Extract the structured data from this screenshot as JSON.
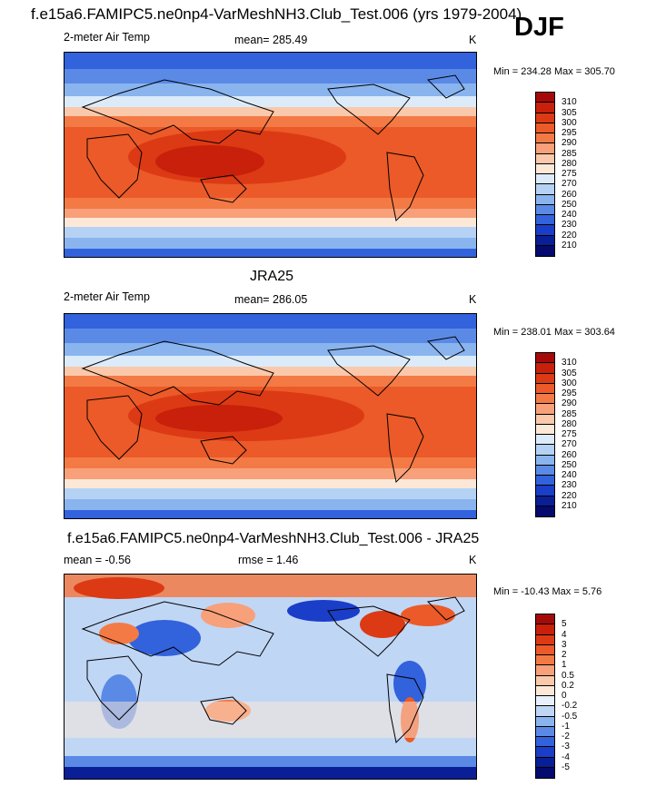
{
  "header": {
    "title": "f.e15a6.FAMIPC5.ne0np4-VarMeshNH3.Club_Test.006 (yrs 1979-2004)",
    "season": "DJF"
  },
  "panels": [
    {
      "id": "model",
      "title": "",
      "left_label": "2-meter Air Temp",
      "center_label": "mean= 285.49",
      "units": "K",
      "minmax": "Min = 234.28 Max = 305.70",
      "colorbar_labels": [
        "310",
        "305",
        "300",
        "295",
        "290",
        "285",
        "280",
        "275",
        "270",
        "260",
        "250",
        "240",
        "230",
        "220",
        "210"
      ],
      "colors": [
        "#a50a0a",
        "#c8200a",
        "#dc3a14",
        "#eb5a28",
        "#f37a45",
        "#f7a07a",
        "#fac8aa",
        "#fde8d8",
        "#dcebfa",
        "#b5d2f5",
        "#8ab4ee",
        "#5a8ae6",
        "#3262dc",
        "#1a3ec8",
        "#0a1e96",
        "#050a6e"
      ]
    },
    {
      "id": "obs",
      "title": "JRA25",
      "left_label": "2-meter Air Temp",
      "center_label": "mean= 286.05",
      "units": "K",
      "minmax": "Min = 238.01 Max = 303.64",
      "colorbar_labels": [
        "310",
        "305",
        "300",
        "295",
        "290",
        "285",
        "280",
        "275",
        "270",
        "260",
        "250",
        "240",
        "230",
        "220",
        "210"
      ],
      "colors": [
        "#a50a0a",
        "#c8200a",
        "#dc3a14",
        "#eb5a28",
        "#f37a45",
        "#f7a07a",
        "#fac8aa",
        "#fde8d8",
        "#dcebfa",
        "#b5d2f5",
        "#8ab4ee",
        "#5a8ae6",
        "#3262dc",
        "#1a3ec8",
        "#0a1e96",
        "#050a6e"
      ]
    },
    {
      "id": "diff",
      "title": "f.e15a6.FAMIPC5.ne0np4-VarMeshNH3.Club_Test.006 - JRA25",
      "left_label": "mean =  -0.56",
      "center_label": "rmse =   1.46",
      "units": "K",
      "minmax": "Min = -10.43 Max =   5.76",
      "colorbar_labels": [
        "5",
        "4",
        "3",
        "2",
        "1",
        "0.5",
        "0.2",
        "0",
        "-0.2",
        "-0.5",
        "-1",
        "-2",
        "-3",
        "-4",
        "-5"
      ],
      "colors": [
        "#a50a0a",
        "#c8200a",
        "#dc3a14",
        "#eb5a28",
        "#f37a45",
        "#f7a07a",
        "#fac8aa",
        "#fde8d8",
        "#e8f0fc",
        "#c0d6f5",
        "#8ab4ee",
        "#5a8ae6",
        "#3262dc",
        "#1a3ec8",
        "#0a1e96",
        "#050a6e"
      ]
    }
  ]
}
